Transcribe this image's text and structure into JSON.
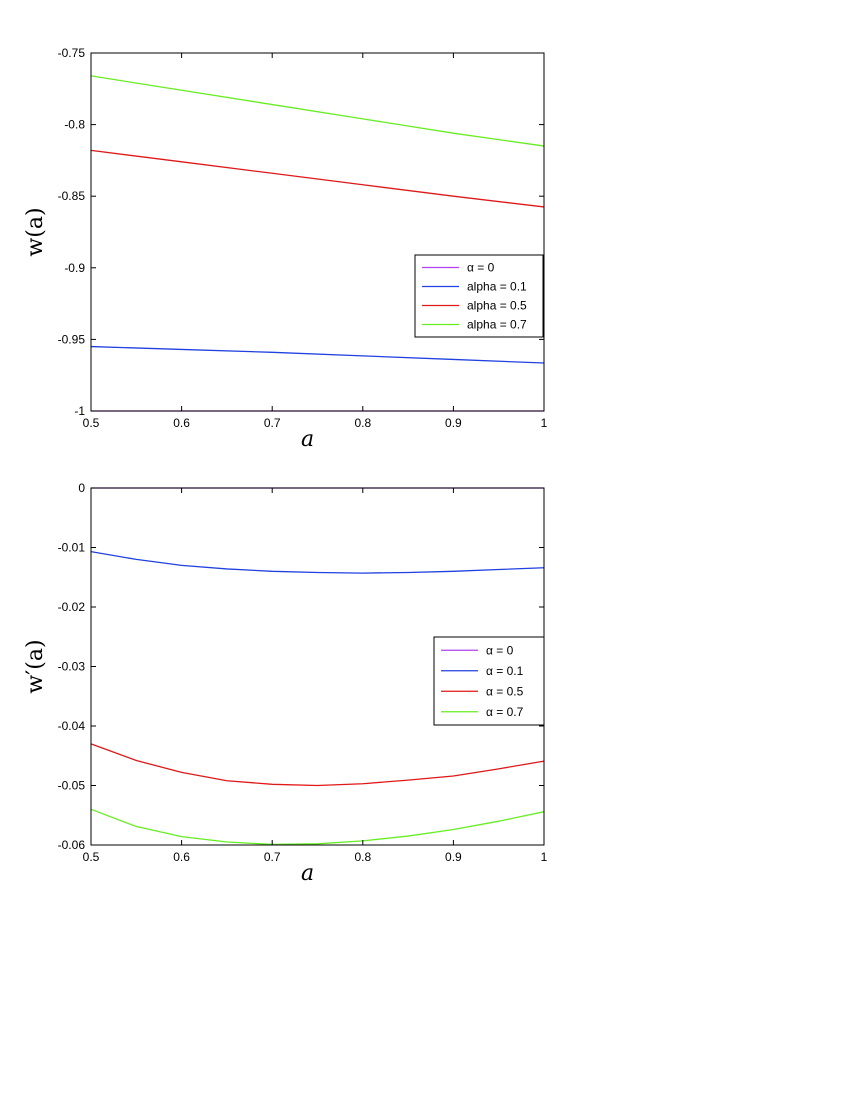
{
  "chart_data": [
    {
      "type": "line",
      "xlabel": "a",
      "ylabel": "w(a)",
      "xlim": [
        0.5,
        1
      ],
      "ylim": [
        -1,
        -0.75
      ],
      "xticks": [
        0.5,
        0.6,
        0.7,
        0.8,
        0.9,
        1
      ],
      "yticks": [
        -1,
        -0.95,
        -0.9,
        -0.85,
        -0.8,
        -0.75
      ],
      "xtick_labels": [
        "0.5",
        "0.6",
        "0.7",
        "0.8",
        "0.9",
        "1"
      ],
      "ytick_labels": [
        "-1",
        "-0.95",
        "-0.9",
        "-0.85",
        "-0.8",
        "-0.75"
      ],
      "grid": false,
      "legend_position": "right",
      "series": [
        {
          "name": "α = 0",
          "color": "#b040f0",
          "x": [
            0.5,
            0.6,
            0.7,
            0.8,
            0.9,
            1.0
          ],
          "y": [
            -1.0,
            -1.0,
            -1.0,
            -1.0,
            -1.0,
            -1.0
          ]
        },
        {
          "name": "alpha = 0.1",
          "color": "#2040e0",
          "x": [
            0.5,
            0.6,
            0.7,
            0.8,
            0.9,
            1.0
          ],
          "y": [
            -0.955,
            -0.957,
            -0.959,
            -0.9615,
            -0.964,
            -0.9665
          ]
        },
        {
          "name": "alpha = 0.5",
          "color": "#e01818",
          "x": [
            0.5,
            0.6,
            0.7,
            0.8,
            0.9,
            1.0
          ],
          "y": [
            -0.818,
            -0.826,
            -0.834,
            -0.842,
            -0.85,
            -0.8575
          ]
        },
        {
          "name": "alpha = 0.7",
          "color": "#66ee22",
          "x": [
            0.5,
            0.6,
            0.7,
            0.8,
            0.9,
            1.0
          ],
          "y": [
            -0.766,
            -0.776,
            -0.786,
            -0.796,
            -0.806,
            -0.815
          ]
        }
      ]
    },
    {
      "type": "line",
      "xlabel": "a",
      "ylabel": "w′(a)",
      "xlim": [
        0.5,
        1
      ],
      "ylim": [
        -0.06,
        0
      ],
      "xticks": [
        0.5,
        0.6,
        0.7,
        0.8,
        0.9,
        1
      ],
      "yticks": [
        -0.06,
        -0.05,
        -0.04,
        -0.03,
        -0.02,
        -0.01,
        0
      ],
      "xtick_labels": [
        "0.5",
        "0.6",
        "0.7",
        "0.8",
        "0.9",
        "1"
      ],
      "ytick_labels": [
        "-0.06",
        "-0.05",
        "-0.04",
        "-0.03",
        "-0.02",
        "-0.01",
        "0"
      ],
      "grid": false,
      "legend_position": "right",
      "series": [
        {
          "name": "α = 0",
          "color": "#b040f0",
          "x": [
            0.5,
            0.6,
            0.7,
            0.8,
            0.9,
            1.0
          ],
          "y": [
            0,
            0,
            0,
            0,
            0,
            0
          ]
        },
        {
          "name": "α = 0.1",
          "color": "#2040e0",
          "x": [
            0.5,
            0.55,
            0.6,
            0.65,
            0.7,
            0.75,
            0.8,
            0.85,
            0.9,
            0.95,
            1.0
          ],
          "y": [
            -0.0107,
            -0.012,
            -0.013,
            -0.0136,
            -0.014,
            -0.0142,
            -0.0143,
            -0.0142,
            -0.014,
            -0.0137,
            -0.0134
          ]
        },
        {
          "name": "α = 0.5",
          "color": "#e01818",
          "x": [
            0.5,
            0.55,
            0.6,
            0.65,
            0.7,
            0.75,
            0.8,
            0.85,
            0.9,
            0.95,
            1.0
          ],
          "y": [
            -0.043,
            -0.0458,
            -0.0478,
            -0.0492,
            -0.0498,
            -0.05,
            -0.0497,
            -0.0491,
            -0.0484,
            -0.0472,
            -0.0459
          ]
        },
        {
          "name": "α = 0.7",
          "color": "#66ee22",
          "x": [
            0.5,
            0.55,
            0.6,
            0.65,
            0.7,
            0.75,
            0.8,
            0.85,
            0.9,
            0.95,
            1.0
          ],
          "y": [
            -0.054,
            -0.0569,
            -0.0586,
            -0.0595,
            -0.0599,
            -0.0598,
            -0.0593,
            -0.0585,
            -0.0574,
            -0.056,
            -0.0544
          ]
        }
      ]
    }
  ]
}
